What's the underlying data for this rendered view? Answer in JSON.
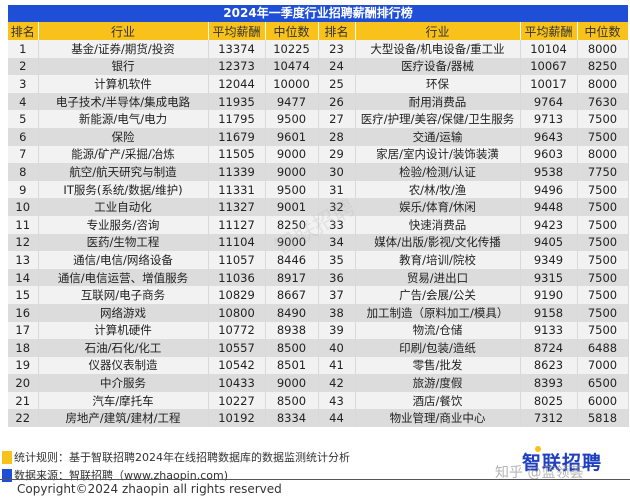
{
  "title": "2024年一季度行业招聘薪酬排行榜",
  "headers": [
    "排名",
    "行业",
    "平均薪酬",
    "中位数",
    "排名",
    "行业",
    "平均薪酬",
    "中位数"
  ],
  "rows": [
    {
      "l": {
        "rank": "1",
        "industry": "基金/证券/期货/投资",
        "avg": "13374",
        "median": "10225"
      },
      "r": {
        "rank": "23",
        "industry": "大型设备/机电设备/重工业",
        "avg": "10104",
        "median": "8000"
      }
    },
    {
      "l": {
        "rank": "2",
        "industry": "银行",
        "avg": "12373",
        "median": "10474"
      },
      "r": {
        "rank": "24",
        "industry": "医疗设备/器械",
        "avg": "10067",
        "median": "8250"
      }
    },
    {
      "l": {
        "rank": "3",
        "industry": "计算机软件",
        "avg": "12044",
        "median": "10000"
      },
      "r": {
        "rank": "25",
        "industry": "环保",
        "avg": "10017",
        "median": "8000"
      }
    },
    {
      "l": {
        "rank": "4",
        "industry": "电子技术/半导体/集成电路",
        "avg": "11935",
        "median": "9477"
      },
      "r": {
        "rank": "26",
        "industry": "耐用消费品",
        "avg": "9764",
        "median": "7630"
      }
    },
    {
      "l": {
        "rank": "5",
        "industry": "新能源/电气/电力",
        "avg": "11795",
        "median": "9500"
      },
      "r": {
        "rank": "27",
        "industry": "医疗/护理/美容/保健/卫生服务",
        "avg": "9713",
        "median": "7500"
      }
    },
    {
      "l": {
        "rank": "6",
        "industry": "保险",
        "avg": "11679",
        "median": "9601"
      },
      "r": {
        "rank": "28",
        "industry": "交通/运输",
        "avg": "9643",
        "median": "7500"
      }
    },
    {
      "l": {
        "rank": "7",
        "industry": "能源/矿产/采掘/冶炼",
        "avg": "11505",
        "median": "9000"
      },
      "r": {
        "rank": "29",
        "industry": "家居/室内设计/装饰装潢",
        "avg": "9603",
        "median": "8000"
      }
    },
    {
      "l": {
        "rank": "8",
        "industry": "航空/航天研究与制造",
        "avg": "11339",
        "median": "9000"
      },
      "r": {
        "rank": "30",
        "industry": "检验/检测/认证",
        "avg": "9538",
        "median": "7750"
      }
    },
    {
      "l": {
        "rank": "9",
        "industry": "IT服务(系统/数据/维护)",
        "avg": "11331",
        "median": "9500"
      },
      "r": {
        "rank": "31",
        "industry": "农/林/牧/渔",
        "avg": "9496",
        "median": "7500"
      }
    },
    {
      "l": {
        "rank": "10",
        "industry": "工业自动化",
        "avg": "11327",
        "median": "9001"
      },
      "r": {
        "rank": "32",
        "industry": "娱乐/体育/休闲",
        "avg": "9448",
        "median": "7500"
      }
    },
    {
      "l": {
        "rank": "11",
        "industry": "专业服务/咨询",
        "avg": "11127",
        "median": "8250"
      },
      "r": {
        "rank": "33",
        "industry": "快速消费品",
        "avg": "9423",
        "median": "7500"
      }
    },
    {
      "l": {
        "rank": "12",
        "industry": "医药/生物工程",
        "avg": "11104",
        "median": "9000"
      },
      "r": {
        "rank": "34",
        "industry": "媒体/出版/影视/文化传播",
        "avg": "9405",
        "median": "7500"
      }
    },
    {
      "l": {
        "rank": "13",
        "industry": "通信/电信/网络设备",
        "avg": "11057",
        "median": "8446"
      },
      "r": {
        "rank": "35",
        "industry": "教育/培训/院校",
        "avg": "9349",
        "median": "7500"
      }
    },
    {
      "l": {
        "rank": "14",
        "industry": "通信/电信运营、增值服务",
        "avg": "11036",
        "median": "8917"
      },
      "r": {
        "rank": "36",
        "industry": "贸易/进出口",
        "avg": "9315",
        "median": "7500"
      }
    },
    {
      "l": {
        "rank": "15",
        "industry": "互联网/电子商务",
        "avg": "10829",
        "median": "8667"
      },
      "r": {
        "rank": "37",
        "industry": "广告/会展/公关",
        "avg": "9190",
        "median": "7500"
      }
    },
    {
      "l": {
        "rank": "16",
        "industry": "网络游戏",
        "avg": "10800",
        "median": "8490"
      },
      "r": {
        "rank": "38",
        "industry": "加工制造（原料加工/模具）",
        "avg": "9158",
        "median": "7500"
      }
    },
    {
      "l": {
        "rank": "17",
        "industry": "计算机硬件",
        "avg": "10772",
        "median": "8938"
      },
      "r": {
        "rank": "39",
        "industry": "物流/仓储",
        "avg": "9133",
        "median": "7500"
      }
    },
    {
      "l": {
        "rank": "18",
        "industry": "石油/石化/化工",
        "avg": "10557",
        "median": "8500"
      },
      "r": {
        "rank": "40",
        "industry": "印刷/包装/造纸",
        "avg": "8724",
        "median": "6488"
      }
    },
    {
      "l": {
        "rank": "19",
        "industry": "仪器仪表制造",
        "avg": "10542",
        "median": "8501"
      },
      "r": {
        "rank": "41",
        "industry": "零售/批发",
        "avg": "8623",
        "median": "7000"
      }
    },
    {
      "l": {
        "rank": "20",
        "industry": "中介服务",
        "avg": "10433",
        "median": "9000"
      },
      "r": {
        "rank": "42",
        "industry": "旅游/度假",
        "avg": "8393",
        "median": "6500"
      }
    },
    {
      "l": {
        "rank": "21",
        "industry": "汽车/摩托车",
        "avg": "10227",
        "median": "8500"
      },
      "r": {
        "rank": "43",
        "industry": "酒店/餐饮",
        "avg": "8025",
        "median": "6000"
      }
    },
    {
      "l": {
        "rank": "22",
        "industry": "房地产/建筑/建材/工程",
        "avg": "10192",
        "median": "8334"
      },
      "r": {
        "rank": "44",
        "industry": "物业管理/商业中心",
        "avg": "7312",
        "median": "5818"
      }
    }
  ],
  "notes": [
    {
      "text": "统计规则：基于智联招聘2024年在线招聘数据库的数据监测统计分析",
      "color": "#f9c21a"
    },
    {
      "text": "数据来源：智联招聘（www.zhaopin.com)",
      "color": "#1f4fd6"
    }
  ],
  "copyright": "Copyright©2024 zhaopin all rights reserved",
  "logo": "智联招聘",
  "watermark": "知乎 @蓝领荟",
  "colors": {
    "title_bg": "#1f4fd6",
    "header_bg": "#f9c21a",
    "row_light": "#f2f2f2",
    "row_dark": "#dcdcdc"
  }
}
